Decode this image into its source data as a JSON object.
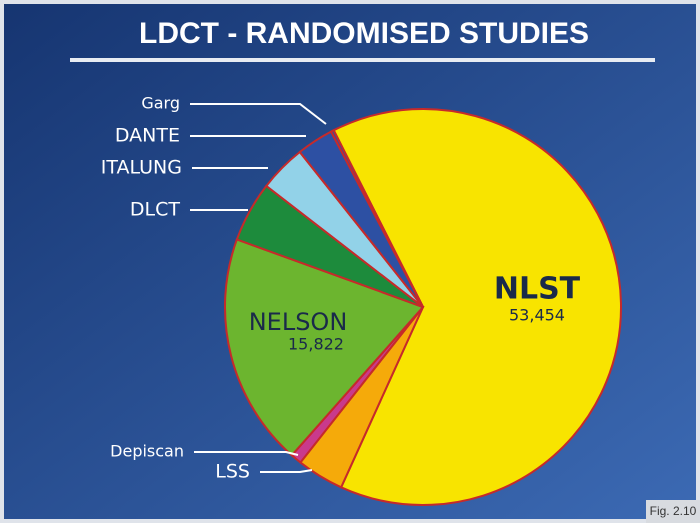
{
  "chart_data": {
    "type": "pie",
    "title": "LDCT - RANDOMISED STUDIES",
    "categories": [
      "NLST",
      "LSS",
      "Depiscan",
      "NELSON",
      "DLCT",
      "ITALUNG",
      "DANTE",
      "Garg"
    ],
    "values": [
      53454,
      3200,
      750,
      15822,
      4100,
      3200,
      2500,
      200
    ],
    "value_labels": [
      "53,454",
      null,
      null,
      "15,822",
      null,
      null,
      null,
      null
    ],
    "colors": [
      "#f8e400",
      "#f5aa0a",
      "#c93a8c",
      "#6cb52f",
      "#1d8b3c",
      "#92d2e8",
      "#2d50a3",
      "#2d50a3"
    ],
    "annotation": "Fig. 2.10"
  }
}
